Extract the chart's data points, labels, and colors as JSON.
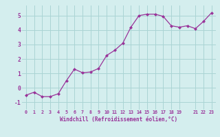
{
  "x": [
    0,
    1,
    2,
    3,
    4,
    5,
    6,
    7,
    8,
    9,
    10,
    11,
    12,
    13,
    14,
    15,
    16,
    17,
    18,
    19,
    20,
    21,
    22,
    23
  ],
  "y": [
    -0.5,
    -0.3,
    -0.6,
    -0.6,
    -0.4,
    0.5,
    1.3,
    1.05,
    1.1,
    1.35,
    2.25,
    2.6,
    3.1,
    4.2,
    5.0,
    5.1,
    5.1,
    4.95,
    4.3,
    4.2,
    4.3,
    4.1,
    4.6,
    5.2
  ],
  "bg_color": "#d4eeee",
  "line_color": "#993399",
  "marker_color": "#993399",
  "grid_color": "#aad4d4",
  "xlabel": "Windchill (Refroidissement éolien,°C)",
  "xlabel_color": "#993399",
  "tick_color": "#993399",
  "ylim": [
    -1.5,
    5.7
  ],
  "xlim": [
    -0.5,
    23.5
  ],
  "yticks": [
    -1,
    0,
    1,
    2,
    3,
    4,
    5
  ],
  "xticks": [
    0,
    1,
    2,
    3,
    4,
    5,
    6,
    7,
    8,
    9,
    10,
    11,
    12,
    13,
    14,
    15,
    16,
    17,
    18,
    19,
    21,
    22,
    23
  ],
  "xtick_labels": [
    "0",
    "1",
    "2",
    "3",
    "4",
    "5",
    "6",
    "7",
    "8",
    "9",
    "10",
    "11",
    "12",
    "13",
    "14",
    "15",
    "16",
    "17",
    "18",
    "19",
    "21",
    "22",
    "23"
  ]
}
